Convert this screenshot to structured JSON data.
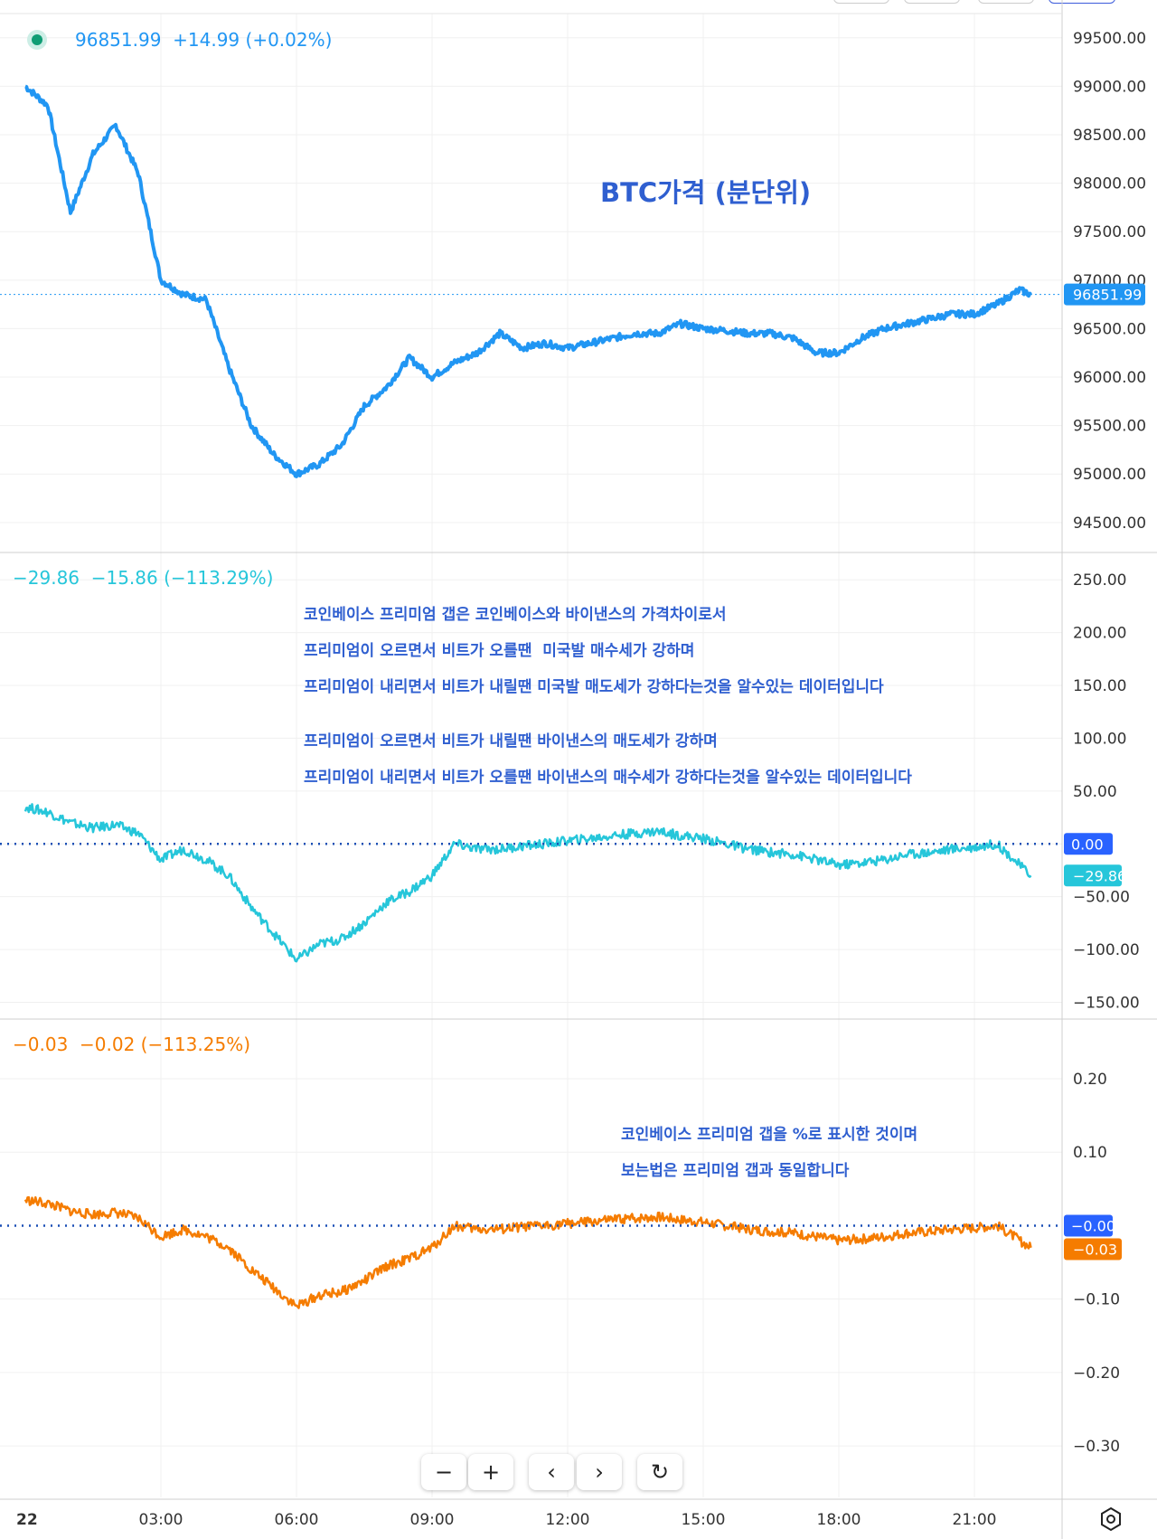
{
  "colors": {
    "btc": "#2196f3",
    "premium": "#26c6da",
    "premium_pct": "#f57c00",
    "note": "#2f5fd0",
    "zero_line": "#1a4fb5",
    "zero_badge": "#2962ff"
  },
  "legend": {
    "btc": "96851.99  +14.99 (+0.02%)",
    "premium": "−29.86  −15.86 (−113.29%)",
    "premium_pct": "−0.03  −0.02 (−113.25%)"
  },
  "notes": {
    "btc_title": "BTC가격 (분단위)",
    "premium_lines": [
      "코인베이스 프리미엄 갭은 코인베이스와 바이낸스의 가격차이로서",
      "프리미엄이 오르면서 비트가 오를땐  미국발 매수세가 강하며",
      "프리미엄이 내리면서 비트가 내릴땐 미국발 매도세가 강하다는것을 알수있는 데이터입니다",
      "프리미엄이 오르면서 비트가 내릴땐 바이낸스의 매도세가 강하며",
      "프리미엄이 내리면서 비트가 오를땐 바이낸스의 매수세가 강하다는것을 알수있는 데이터입니다"
    ],
    "pct_lines": [
      "코인베이스 프리미엄 갭을 %로 표시한 것이며",
      "보는법은 프리미엄 갭과 동일합니다"
    ]
  },
  "chart_data": [
    {
      "type": "line",
      "series": [
        {
          "name": "",
          "x": [
            "00:00",
            "00:30",
            "01:00",
            "01:30",
            "02:00",
            "02:30",
            "03:00",
            "03:30",
            "04:00",
            "04:30",
            "05:00",
            "05:30",
            "06:00",
            "06:30",
            "07:00",
            "07:30",
            "08:00",
            "08:30",
            "09:00",
            "09:30",
            "10:00",
            "10:30",
            "11:00",
            "11:30",
            "12:00",
            "12:30",
            "13:00",
            "13:30",
            "14:00",
            "14:30",
            "15:00",
            "15:30",
            "16:00",
            "16:30",
            "17:00",
            "17:30",
            "18:00",
            "18:30",
            "19:00",
            "19:30",
            "20:00",
            "20:30",
            "21:00",
            "21:30",
            "22:00",
            "22:15"
          ],
          "values": [
            99000,
            98800,
            97700,
            98300,
            98600,
            98100,
            97000,
            96850,
            96800,
            96100,
            95500,
            95200,
            95000,
            95100,
            95300,
            95700,
            95900,
            96200,
            96000,
            96150,
            96250,
            96450,
            96300,
            96350,
            96300,
            96350,
            96400,
            96450,
            96450,
            96550,
            96500,
            96480,
            96450,
            96450,
            96400,
            96250,
            96250,
            96400,
            96500,
            96550,
            96600,
            96650,
            96650,
            96750,
            96900,
            96852
          ]
        }
      ],
      "y_ticks": [
        "99500.00",
        "99000.00",
        "98500.00",
        "98000.00",
        "97500.00",
        "97000.00",
        "96500.00",
        "96000.00",
        "95500.00",
        "95000.00",
        "94500.00"
      ],
      "ylim": [
        94200,
        99750
      ],
      "last_value_label": "96851.99"
    },
    {
      "type": "line",
      "series": [
        {
          "name": "",
          "x": [
            "00:00",
            "00:30",
            "01:00",
            "01:30",
            "02:00",
            "02:30",
            "03:00",
            "03:30",
            "04:00",
            "04:30",
            "05:00",
            "05:30",
            "06:00",
            "06:30",
            "07:00",
            "07:30",
            "08:00",
            "08:30",
            "09:00",
            "09:30",
            "10:00",
            "10:30",
            "11:00",
            "11:30",
            "12:00",
            "12:30",
            "13:00",
            "13:30",
            "14:00",
            "14:30",
            "15:00",
            "15:30",
            "16:00",
            "16:30",
            "17:00",
            "17:30",
            "18:00",
            "18:30",
            "19:00",
            "19:30",
            "20:00",
            "20:30",
            "21:00",
            "21:30",
            "22:00",
            "22:15"
          ],
          "values": [
            35,
            30,
            20,
            15,
            18,
            10,
            -15,
            -5,
            -15,
            -30,
            -60,
            -85,
            -110,
            -95,
            -90,
            -75,
            -55,
            -45,
            -30,
            0,
            -5,
            -5,
            -2,
            0,
            3,
            5,
            8,
            10,
            12,
            8,
            5,
            0,
            -5,
            -8,
            -10,
            -15,
            -20,
            -18,
            -15,
            -10,
            -8,
            -5,
            -3,
            0,
            -20,
            -30
          ]
        }
      ],
      "y_ticks": [
        "250.00",
        "200.00",
        "150.00",
        "100.00",
        "50.00",
        "0.00",
        "−50.00",
        "−100.00",
        "−150.00"
      ],
      "ylim": [
        -165,
        275
      ],
      "zero_label": "0.00",
      "last_value_label": "−29.86"
    },
    {
      "type": "line",
      "series": [
        {
          "name": "",
          "x": [
            "00:00",
            "00:30",
            "01:00",
            "01:30",
            "02:00",
            "02:30",
            "03:00",
            "03:30",
            "04:00",
            "04:30",
            "05:00",
            "05:30",
            "06:00",
            "06:30",
            "07:00",
            "07:30",
            "08:00",
            "08:30",
            "09:00",
            "09:30",
            "10:00",
            "10:30",
            "11:00",
            "11:30",
            "12:00",
            "12:30",
            "13:00",
            "13:30",
            "14:00",
            "14:30",
            "15:00",
            "15:30",
            "16:00",
            "16:30",
            "17:00",
            "17:30",
            "18:00",
            "18:30",
            "19:00",
            "19:30",
            "20:00",
            "20:30",
            "21:00",
            "21:30",
            "22:00",
            "22:15"
          ],
          "values": [
            0.035,
            0.03,
            0.02,
            0.015,
            0.018,
            0.01,
            -0.015,
            -0.005,
            -0.015,
            -0.03,
            -0.06,
            -0.085,
            -0.11,
            -0.095,
            -0.09,
            -0.075,
            -0.055,
            -0.045,
            -0.03,
            0.0,
            -0.005,
            -0.005,
            -0.002,
            0.0,
            0.003,
            0.005,
            0.008,
            0.01,
            0.012,
            0.008,
            0.005,
            0.0,
            -0.005,
            -0.008,
            -0.01,
            -0.015,
            -0.02,
            -0.018,
            -0.015,
            -0.01,
            -0.008,
            -0.005,
            -0.003,
            0.0,
            -0.02,
            -0.03
          ]
        }
      ],
      "y_ticks": [
        "0.20",
        "0.10",
        "−0.10",
        "−0.20",
        "−0.30"
      ],
      "ylim": [
        -0.37,
        0.28
      ],
      "zero_label": "−0.00",
      "last_value_label": "−0.03"
    }
  ],
  "x_axis": {
    "ticks": [
      "22",
      "03:00",
      "06:00",
      "09:00",
      "12:00",
      "15:00",
      "18:00",
      "21:00"
    ]
  },
  "nav": {
    "zoom_out": "−",
    "zoom_in": "+",
    "scroll_left": "‹",
    "scroll_right": "›",
    "reset": "↻"
  }
}
